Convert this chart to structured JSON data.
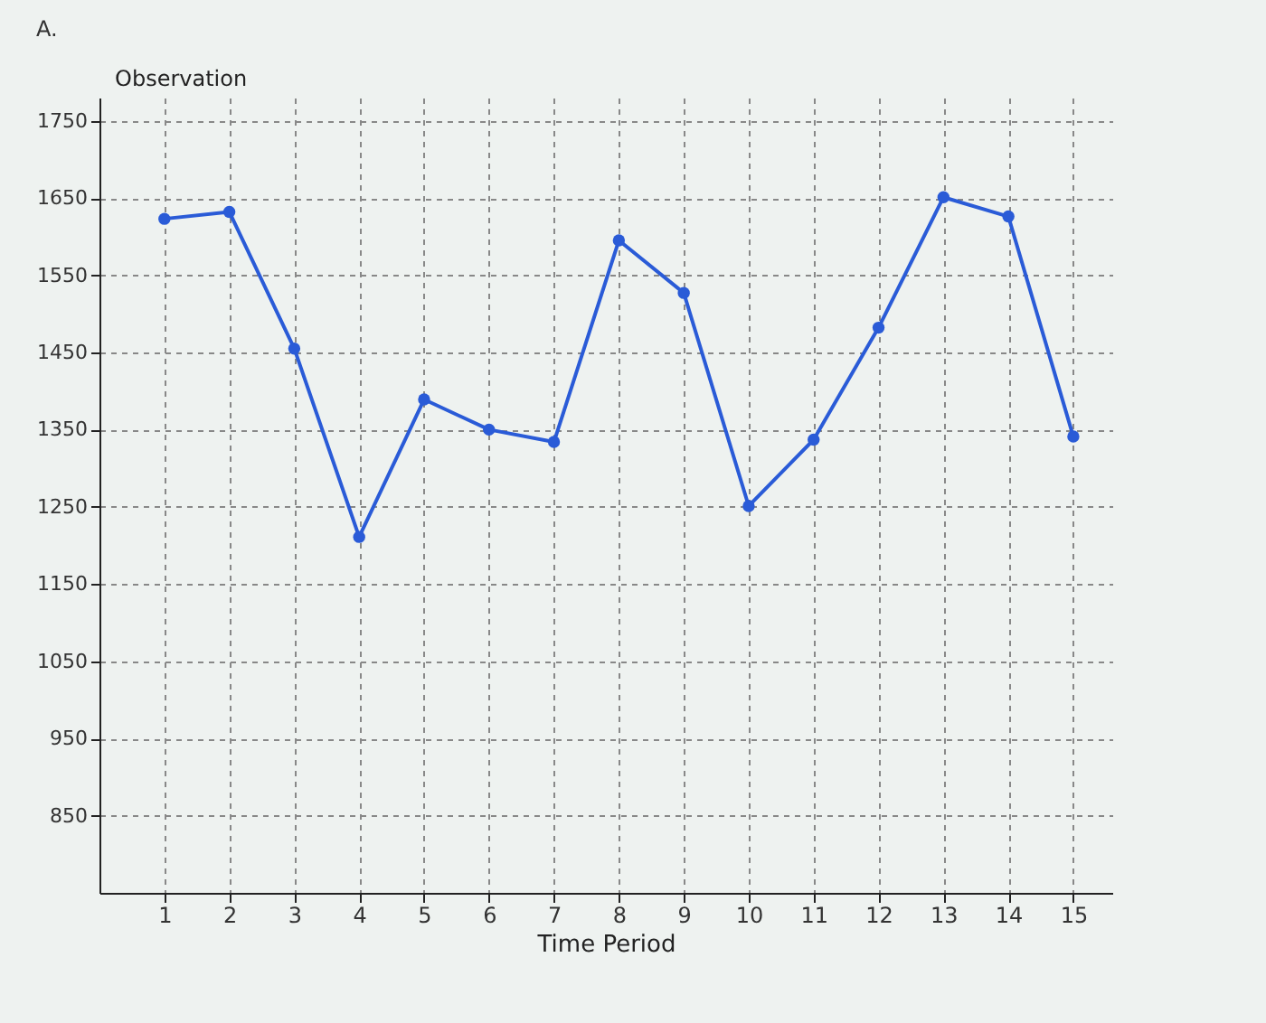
{
  "chart_data": {
    "type": "line",
    "xlabel": "Time Period",
    "ylabel": "Observation",
    "annotations": [
      "A."
    ],
    "x": [
      1,
      2,
      3,
      4,
      5,
      6,
      7,
      8,
      9,
      10,
      11,
      12,
      13,
      14,
      15
    ],
    "series": [
      {
        "color": "#2a5bd7",
        "values": [
          1623,
          1632,
          1455,
          1211,
          1389,
          1350,
          1334,
          1595,
          1527,
          1251,
          1337,
          1482,
          1651,
          1626,
          1341
        ]
      }
    ],
    "xlim": [
      0,
      15.6
    ],
    "xticks": [
      1,
      2,
      3,
      4,
      5,
      6,
      7,
      8,
      9,
      10,
      11,
      12,
      13,
      14,
      15
    ],
    "ylim": [
      750,
      1780
    ],
    "yticks": [
      850,
      950,
      1050,
      1150,
      1250,
      1350,
      1450,
      1550,
      1650,
      1750
    ],
    "grid": true,
    "marker": "circle",
    "line_style": "solid"
  }
}
